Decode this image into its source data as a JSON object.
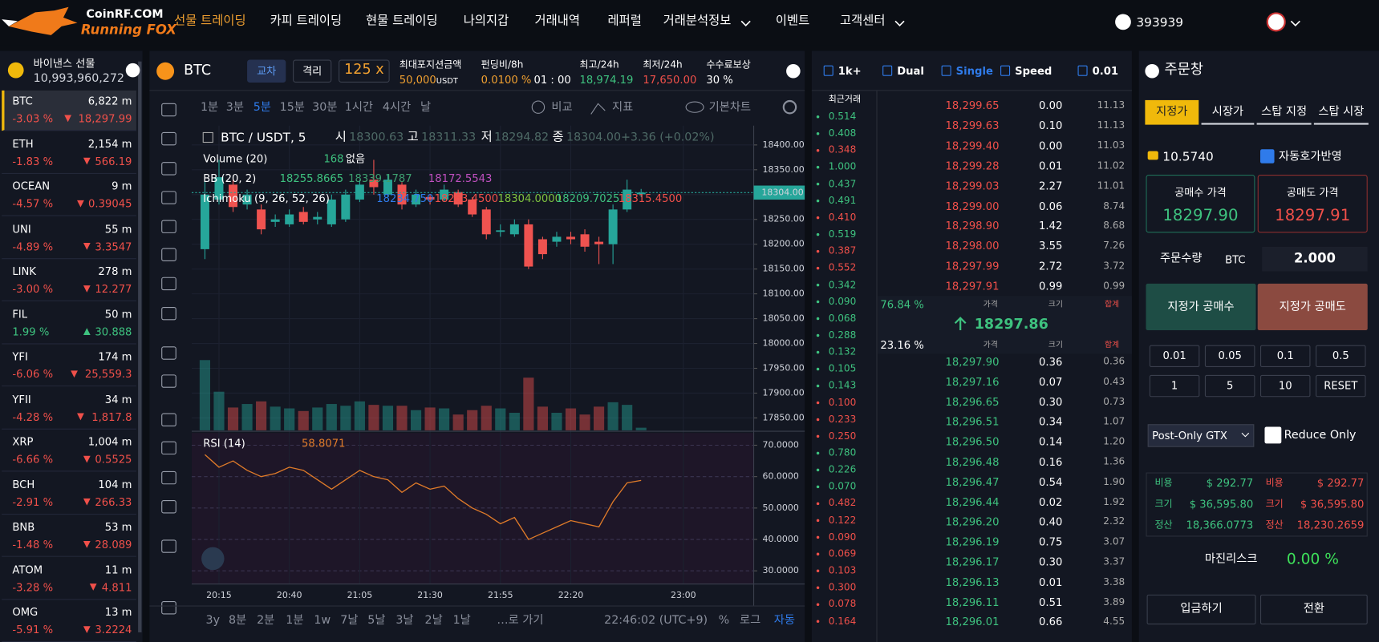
{
  "header": {
    "logo_top": "CoinRF.COM",
    "logo_bottom": "Running FOX",
    "nav": [
      "선물 트레이딩",
      "카피 트레이딩",
      "현물 트레이딩",
      "나의지갑",
      "거래내역",
      "레퍼럴",
      "거래분석정보",
      "이벤트",
      "고객센터"
    ],
    "user": "393939"
  },
  "markets": {
    "title": "바이낸스 선물",
    "volume": "10,993,960,272",
    "rows": [
      [
        "BTC",
        "6,822 m",
        "-3.03 %",
        "18,297.99"
      ],
      [
        "ETH",
        "2,154 m",
        "-1.83 %",
        "566.19"
      ],
      [
        "OCEAN",
        "9 m",
        "-4.57 %",
        "0.39045"
      ],
      [
        "UNI",
        "55 m",
        "-4.89 %",
        "3.3547"
      ],
      [
        "LINK",
        "278 m",
        "-3.00 %",
        "12.277"
      ],
      [
        "FIL",
        "50 m",
        "1.99 %",
        "30.888"
      ],
      [
        "YFI",
        "174 m",
        "-6.06 %",
        "25,559.3"
      ],
      [
        "YFII",
        "34 m",
        "-4.28 %",
        "1,817.8"
      ],
      [
        "XRP",
        "1,004 m",
        "-6.66 %",
        "0.5525"
      ],
      [
        "BCH",
        "104 m",
        "-2.91 %",
        "266.33"
      ],
      [
        "BNB",
        "53 m",
        "-1.48 %",
        "28.089"
      ],
      [
        "ATOM",
        "11 m",
        "-3.28 %",
        "4.811"
      ],
      [
        "OMG",
        "13 m",
        "-5.91 %",
        "3.2224"
      ]
    ]
  },
  "ticker": {
    "symbol": "BTC",
    "margin_modes": [
      "교차",
      "격리"
    ],
    "leverage": "125 x",
    "max_position_label": "최대포지션금액",
    "max_position": "50,000",
    "max_position_unit": "USDT",
    "funding_label": "펀딩비/8h",
    "funding": "0.0100 %",
    "funding_time": "01 : 00",
    "high_label": "최고/24h",
    "high": "18,974.19",
    "low_label": "최저/24h",
    "low": "17,650.00",
    "rebate_label": "수수료보상",
    "rebate": "30 %"
  },
  "toolbar": {
    "intervals": [
      "1분",
      "3분",
      "5분",
      "15분",
      "30분",
      "1시간",
      "4시간",
      "날"
    ],
    "compare": "비교",
    "indicators": "지표",
    "chart_style": "기본차트"
  },
  "chart_data": {
    "type": "candlestick",
    "pair": "BTC / USDT, 5",
    "ohlc_labels": [
      "시",
      "고",
      "저",
      "종"
    ],
    "ohlc_values": [
      "18300.63",
      "18311.33",
      "18294.82",
      "18304.00"
    ],
    "change": "+3.36 (+0.02%)",
    "volume_label": "Volume (20)",
    "volume_value": "168",
    "volume_ma": "없음",
    "bb_label": "BB (20, 2)",
    "bb_values": [
      "18255.8665",
      "18339.1787",
      "18172.5543"
    ],
    "ichimoku_label": "Ichimoku (9, 26, 52, 26)",
    "ichimoku_values": [
      "18234.750",
      "18263.4500",
      "18304.0000",
      "18209.7025",
      "18315.4500"
    ],
    "categories": [
      null,
      "20:15",
      null,
      null,
      null,
      null,
      "20:40",
      null,
      null,
      null,
      null,
      "21:05",
      null,
      null,
      null,
      null,
      "21:30",
      null,
      null,
      null,
      null,
      "21:55",
      null,
      null,
      null,
      null,
      "22:20",
      null,
      null,
      null,
      null,
      null,
      null,
      null,
      "23:00"
    ],
    "open": [
      18190,
      18290,
      18320,
      18280,
      18270,
      18245,
      18240,
      18265,
      18250,
      18240,
      18250,
      18290,
      18330,
      18300,
      18320,
      18280,
      18295,
      18290,
      18305,
      18290,
      18270,
      18225,
      18220,
      18240,
      18210,
      18205,
      18215,
      18220,
      18205,
      18200,
      18270,
      18300.63,
      null,
      null,
      null
    ],
    "high": [
      18330,
      18370,
      18330,
      18310,
      18280,
      18260,
      18270,
      18275,
      18265,
      18300,
      18310,
      18330,
      18370,
      18340,
      18325,
      18310,
      18300,
      18320,
      18310,
      18295,
      18275,
      18240,
      18250,
      18250,
      18215,
      18225,
      18225,
      18230,
      18215,
      18280,
      18330,
      18311.33,
      null,
      null,
      null
    ],
    "low": [
      18170,
      18280,
      18265,
      18270,
      18220,
      18235,
      18235,
      18240,
      18240,
      18235,
      18245,
      18285,
      18300,
      18295,
      18270,
      18275,
      18280,
      18285,
      18275,
      18255,
      18210,
      18215,
      18215,
      18150,
      18170,
      18195,
      18200,
      18185,
      18160,
      18160,
      18265,
      18294.82,
      null,
      null,
      null
    ],
    "close": [
      18300,
      18335,
      18275,
      18300,
      18230,
      18250,
      18260,
      18245,
      18255,
      18290,
      18300,
      18320,
      18315,
      18330,
      18280,
      18300,
      18290,
      18310,
      18280,
      18260,
      18220,
      18228,
      18240,
      18155,
      18180,
      18215,
      18210,
      18195,
      18200,
      18270,
      18310,
      18304,
      null,
      null,
      null
    ],
    "volume": [
      800,
      440,
      260,
      300,
      330,
      270,
      250,
      220,
      260,
      300,
      280,
      330,
      290,
      280,
      280,
      230,
      260,
      250,
      180,
      230,
      280,
      250,
      200,
      600,
      270,
      200,
      250,
      180,
      270,
      320,
      290,
      30,
      null,
      null,
      null
    ],
    "volume_lim": [
      0,
      1000
    ],
    "up_color": "#26a69a",
    "down_color": "#ef5350",
    "ylim": [
      17825,
      18439
    ],
    "yticks": [
      {
        "value": 18400,
        "label": "18400.00"
      },
      {
        "value": 18350,
        "label": "18350.00"
      },
      {
        "value": 18300,
        "label": "18300.00"
      },
      {
        "value": 18250,
        "label": "18250.00"
      },
      {
        "value": 18200,
        "label": "18200.00"
      },
      {
        "value": 18150,
        "label": "18150.00"
      },
      {
        "value": 18100,
        "label": "18100.00"
      },
      {
        "value": 18050,
        "label": "18050.00"
      },
      {
        "value": 18000,
        "label": "18000.00"
      },
      {
        "value": 17950,
        "label": "17950.00"
      },
      {
        "value": 17900,
        "label": "17900.00"
      },
      {
        "value": 17850,
        "label": "17850.00"
      }
    ],
    "last_price": {
      "value": 18304,
      "label": "18304.00"
    },
    "rsi": {
      "label": "RSI (14)",
      "value": "58.8071",
      "color": "#e07b29",
      "values": [
        67,
        63,
        65,
        62,
        60,
        61,
        63,
        62,
        59,
        56,
        59,
        62,
        60,
        59,
        55,
        58,
        56,
        57,
        53,
        50,
        48,
        45,
        47,
        40,
        42,
        44,
        46,
        45,
        44,
        52,
        58,
        58.8071,
        null,
        null,
        null
      ],
      "ylim": [
        25.8,
        73.9
      ],
      "yticks": [
        {
          "value": 70,
          "label": "70.0000"
        },
        {
          "value": 60,
          "label": "60.0000"
        },
        {
          "value": 50,
          "label": "50.0000"
        },
        {
          "value": 40,
          "label": "40.0000"
        },
        {
          "value": 30,
          "label": "30.0000"
        }
      ]
    }
  },
  "bottom_bar": {
    "ranges": [
      "3y",
      "8분",
      "2분",
      "1분",
      "1w",
      "7날",
      "5날",
      "3날",
      "2날",
      "1날"
    ],
    "goto": "…로 가기",
    "clock": "22:46:02 (UTC+9)",
    "percent": "%",
    "log": "로그",
    "auto": "자동"
  },
  "orderbook": {
    "options": [
      "1k+",
      "Dual",
      "Single",
      "Speed",
      "0.01"
    ],
    "trades_title": "최근거래",
    "trades": [
      "0.514",
      "0.408",
      "0.348",
      "1.000",
      "0.437",
      "0.491",
      "0.410",
      "0.519",
      "0.387",
      "0.552",
      "0.342",
      "0.090",
      "0.068",
      "0.288",
      "0.132",
      "0.105",
      "0.143",
      "0.100",
      "0.233",
      "0.250",
      "0.780",
      "0.226",
      "0.070",
      "0.482",
      "0.122",
      "0.090",
      "0.069",
      "0.103",
      "0.300",
      "0.078",
      "0.164"
    ],
    "trade_colors": [
      "#3ec27f",
      "#3ec27f",
      "#f0504a",
      "#3ec27f",
      "#3ec27f",
      "#3ec27f",
      "#f0504a",
      "#3ec27f",
      "#f0504a",
      "#f0504a",
      "#3ec27f",
      "#3ec27f",
      "#3ec27f",
      "#3ec27f",
      "#3ec27f",
      "#3ec27f",
      "#3ec27f",
      "#f0504a",
      "#f0504a",
      "#f0504a",
      "#3ec27f",
      "#3ec27f",
      "#3ec27f",
      "#f0504a",
      "#f0504a",
      "#f0504a",
      "#f0504a",
      "#f0504a",
      "#f0504a",
      "#f0504a",
      "#f0504a"
    ],
    "asks": [
      [
        "18,299.65",
        "0.00",
        "11.13"
      ],
      [
        "18,299.63",
        "0.10",
        "11.13"
      ],
      [
        "18,299.40",
        "0.00",
        "11.03"
      ],
      [
        "18,299.28",
        "0.01",
        "11.02"
      ],
      [
        "18,299.03",
        "2.27",
        "11.01"
      ],
      [
        "18,299.00",
        "0.06",
        "8.74"
      ],
      [
        "18,298.90",
        "1.42",
        "8.68"
      ],
      [
        "18,298.00",
        "3.55",
        "7.26"
      ],
      [
        "18,297.99",
        "2.72",
        "3.72"
      ],
      [
        "18,297.91",
        "0.99",
        "0.99"
      ]
    ],
    "buy_ratio": "76.84 %",
    "sell_ratio": "23.16 %",
    "columns": [
      "가격",
      "크기",
      "합계"
    ],
    "mid_price": "18297.86",
    "bids": [
      [
        "18,297.90",
        "0.36",
        "0.36"
      ],
      [
        "18,297.16",
        "0.07",
        "0.43"
      ],
      [
        "18,296.65",
        "0.30",
        "0.73"
      ],
      [
        "18,296.51",
        "0.34",
        "1.07"
      ],
      [
        "18,296.50",
        "0.14",
        "1.20"
      ],
      [
        "18,296.48",
        "0.16",
        "1.36"
      ],
      [
        "18,296.47",
        "0.54",
        "1.90"
      ],
      [
        "18,296.44",
        "0.02",
        "1.92"
      ],
      [
        "18,296.20",
        "0.40",
        "2.32"
      ],
      [
        "18,296.19",
        "0.75",
        "3.07"
      ],
      [
        "18,296.17",
        "0.30",
        "3.37"
      ],
      [
        "18,296.13",
        "0.01",
        "3.38"
      ],
      [
        "18,296.11",
        "0.51",
        "3.89"
      ],
      [
        "18,296.01",
        "0.66",
        "4.55"
      ]
    ]
  },
  "order": {
    "title": "주문창",
    "tabs": [
      "지정가",
      "시장가",
      "스탑 지정",
      "스탑 시장"
    ],
    "balance": "10.5740",
    "auto_price": "자동호가반영",
    "buy_price_label": "공매수 가격",
    "buy_price": "18297.90",
    "sell_price_label": "공매도 가격",
    "sell_price": "18297.91",
    "qty_label": "주문수량",
    "qty_unit": "BTC",
    "qty": "2.000",
    "buy_button": "지정가 공매수",
    "sell_button": "지정가 공매도",
    "quick": [
      "0.01",
      "0.05",
      "0.1",
      "0.5",
      "1",
      "5",
      "10",
      "RESET"
    ],
    "tif": "Post-Only GTX",
    "reduce_only": "Reduce Only",
    "summary": [
      [
        "비용",
        "$ 292.77",
        "비용",
        "$ 292.77"
      ],
      [
        "크기",
        "$ 36,595.80",
        "크기",
        "$ 36,595.80"
      ],
      [
        "정산",
        "18,366.0773",
        "정산",
        "18,230.2659"
      ]
    ],
    "margin_risk_label": "마진리스크",
    "margin_risk": "0.00 %",
    "deposit": "입금하기",
    "transfer": "전환"
  }
}
